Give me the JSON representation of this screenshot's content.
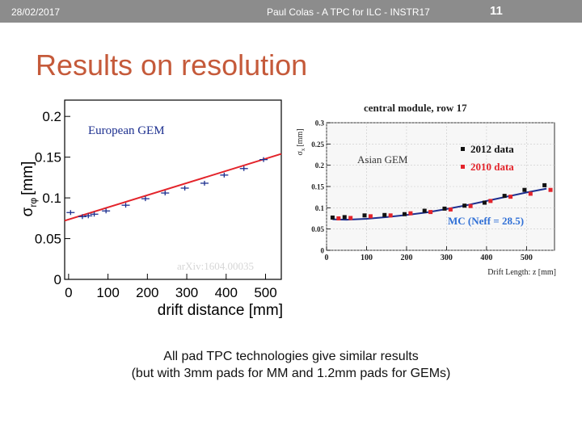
{
  "header": {
    "date": "28/02/2017",
    "center_text": "Paul Colas - A TPC for ILC - INSTR17",
    "page_number": "11"
  },
  "slide": {
    "title": "Results on resolution",
    "caption_line1": "All pad TPC technologies give similar results",
    "caption_line2": "(but with 3mm pads for MM and 1.2mm pads for GEMs)"
  },
  "colors": {
    "title": "#c55a3a",
    "header_bar": "#8c8c8c",
    "series_red": "#e3242b",
    "series_blue": "#1c2f8f"
  },
  "chart_data": [
    {
      "type": "scatter",
      "title": "",
      "annotation": "European GEM",
      "watermark": "arXiv:1604.00035",
      "xlabel": "drift distance [mm]",
      "ylabel": "σrφ [mm]",
      "ylabel_main": "σ",
      "ylabel_sub": "rφ",
      "ylabel_unit": "[mm]",
      "xlim": [
        -10,
        540
      ],
      "ylim": [
        0,
        0.22
      ],
      "xticks": [
        "0",
        "100",
        "200",
        "300",
        "400",
        "500"
      ],
      "yticks": [
        "0",
        "0.05",
        "0.1",
        "0.15",
        "0.2"
      ],
      "series": [
        {
          "x": [
            5,
            35,
            50,
            65,
            95,
            145,
            195,
            245,
            295,
            345,
            395,
            445,
            495
          ],
          "y": [
            0.082,
            0.077,
            0.078,
            0.08,
            0.084,
            0.091,
            0.099,
            0.106,
            0.112,
            0.118,
            0.128,
            0.136,
            0.147
          ]
        }
      ],
      "fit": {
        "x": [
          -10,
          540
        ],
        "y": [
          0.072,
          0.154
        ]
      }
    },
    {
      "type": "scatter",
      "title": "central module, row 17",
      "annotation": "Asian GEM",
      "xlabel": "Drift Length: z [mm]",
      "ylabel": "σx [mm]",
      "ylabel_main": "σ",
      "ylabel_sub": "x",
      "ylabel_unit": "[mm]",
      "xlim": [
        0,
        570
      ],
      "ylim": [
        0,
        0.3
      ],
      "xticks": [
        "0",
        "100",
        "200",
        "300",
        "400",
        "500"
      ],
      "yticks": [
        "0",
        "0.05",
        "0.1",
        "0.15",
        "0.2",
        "0.25",
        "0.3"
      ],
      "legend": "top-right",
      "fit_label": "MC (Neff = 28.5)",
      "series": [
        {
          "name": "2012 data",
          "x": [
            15,
            45,
            95,
            145,
            195,
            245,
            295,
            345,
            395,
            445,
            495,
            545
          ],
          "y": [
            0.077,
            0.078,
            0.082,
            0.083,
            0.085,
            0.093,
            0.098,
            0.105,
            0.112,
            0.128,
            0.142,
            0.153
          ]
        },
        {
          "name": "2010 data",
          "x": [
            30,
            60,
            110,
            160,
            210,
            260,
            310,
            360,
            410,
            460,
            510,
            560
          ],
          "y": [
            0.075,
            0.076,
            0.08,
            0.082,
            0.087,
            0.09,
            0.096,
            0.104,
            0.116,
            0.126,
            0.133,
            0.142
          ]
        }
      ],
      "fit": {
        "x": [
          15,
          50,
          100,
          150,
          200,
          250,
          300,
          350,
          400,
          450,
          500,
          550
        ],
        "y": [
          0.073,
          0.072,
          0.074,
          0.078,
          0.083,
          0.089,
          0.097,
          0.106,
          0.116,
          0.126,
          0.136,
          0.145
        ]
      }
    }
  ]
}
